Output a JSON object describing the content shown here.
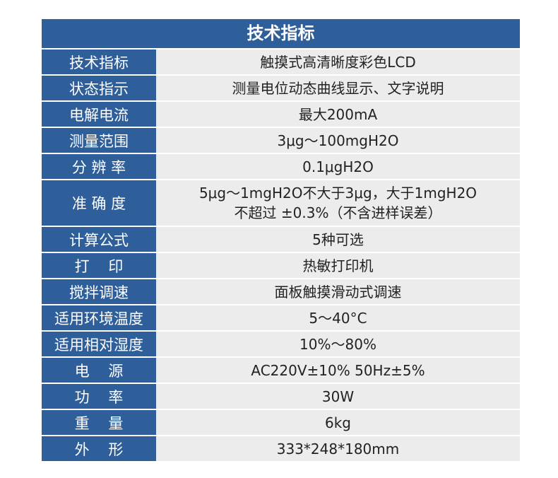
{
  "title": "技术指标",
  "rows": [
    {
      "key": "技术指标",
      "value": [
        "触摸式高清晰度彩色LCD"
      ]
    },
    {
      "key": "状态指示",
      "value": [
        "测量电位动态曲线显示、文字说明"
      ]
    },
    {
      "key": "电解电流",
      "value": [
        "最大200mA"
      ]
    },
    {
      "key": "测量范围",
      "value": [
        "3μg～100mgH2O"
      ]
    },
    {
      "key": "分 辨 率",
      "value": [
        "0.1μgH2O"
      ]
    },
    {
      "key": "准 确 度",
      "value": [
        "5μg～1mgH2O不大于3μg，大于1mgH2O",
        "不超过 ±0.3%（不含进样误差）"
      ]
    },
    {
      "key": "计算公式",
      "value": [
        "5种可选"
      ]
    },
    {
      "key": "打    印",
      "value": [
        "热敏打印机"
      ]
    },
    {
      "key": "搅拌调速",
      "value": [
        "面板触摸滑动式调速"
      ]
    },
    {
      "key": "适用环境温度",
      "value": [
        "5～40°C"
      ]
    },
    {
      "key": "适用相对湿度",
      "value": [
        "10%～80%"
      ]
    },
    {
      "key": "电    源",
      "value": [
        "AC220V±10% 50Hz±5%"
      ]
    },
    {
      "key": "功    率",
      "value": [
        "30W"
      ]
    },
    {
      "key": "重    量",
      "value": [
        "6kg"
      ]
    },
    {
      "key": "外    形",
      "value": [
        "333*248*180mm"
      ]
    }
  ],
  "colors": {
    "header_bg": "#2f5f9a",
    "value_bg": "#ececec"
  }
}
